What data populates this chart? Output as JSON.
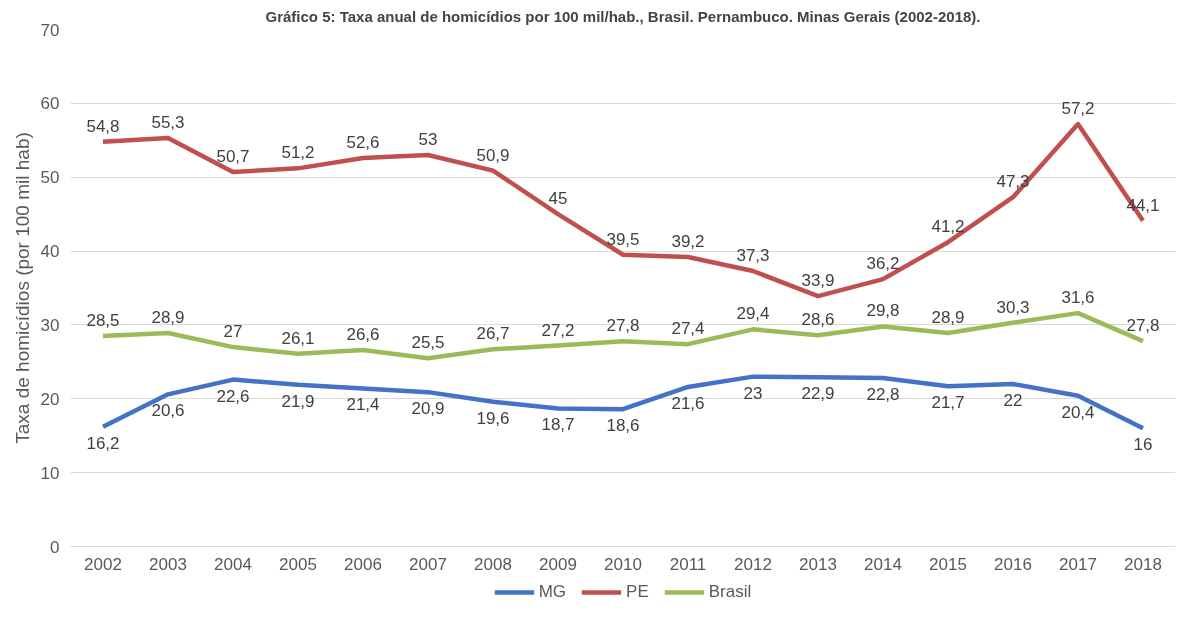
{
  "chart_data": {
    "type": "line",
    "title": "Gráfico 5: Taxa anual de homicídios por 100 mil/hab., Brasil. Pernambuco. Minas Gerais (2002-2018).",
    "ylabel": "Taxa de homicídios (por 100 mil hab)",
    "categories": [
      "2002",
      "2003",
      "2004",
      "2005",
      "2006",
      "2007",
      "2008",
      "2009",
      "2010",
      "2011",
      "2012",
      "2013",
      "2014",
      "2015",
      "2016",
      "2017",
      "2018"
    ],
    "series": [
      {
        "name": "MG",
        "color": "#4472c4",
        "values": [
          16.2,
          20.6,
          22.6,
          21.9,
          21.4,
          20.9,
          19.6,
          18.7,
          18.6,
          21.6,
          23,
          22.9,
          22.8,
          21.7,
          22,
          20.4,
          16
        ],
        "value_labels": [
          "16,2",
          "20,6",
          "22,6",
          "21,9",
          "21,4",
          "20,9",
          "19,6",
          "18,7",
          "18,6",
          "21,6",
          "23",
          "22,9",
          "22,8",
          "21,7",
          "22",
          "20,4",
          "16"
        ]
      },
      {
        "name": "PE",
        "color": "#c0504d",
        "values": [
          54.8,
          55.3,
          50.7,
          51.2,
          52.6,
          53,
          50.9,
          45,
          39.5,
          39.2,
          37.3,
          33.9,
          36.2,
          41.2,
          47.3,
          57.2,
          44.1
        ],
        "value_labels": [
          "54,8",
          "55,3",
          "50,7",
          "51,2",
          "52,6",
          "53",
          "50,9",
          "45",
          "39,5",
          "39,2",
          "37,3",
          "33,9",
          "36,2",
          "41,2",
          "47,3",
          "57,2",
          "44,1"
        ]
      },
      {
        "name": "Brasil",
        "color": "#9bbb59",
        "values": [
          28.5,
          28.9,
          27,
          26.1,
          26.6,
          25.5,
          26.7,
          27.2,
          27.8,
          27.4,
          29.4,
          28.6,
          29.8,
          28.9,
          30.3,
          31.6,
          27.8
        ],
        "value_labels": [
          "28,5",
          "28,9",
          "27",
          "26,1",
          "26,6",
          "25,5",
          "26,7",
          "27,2",
          "27,8",
          "27,4",
          "29,4",
          "28,6",
          "29,8",
          "28,9",
          "30,3",
          "31,6",
          "27,8"
        ]
      }
    ],
    "ylim": [
      0,
      70
    ],
    "yticks": [
      0,
      10,
      20,
      30,
      40,
      50,
      60,
      70
    ],
    "grid": "y",
    "legend": "bottom",
    "line_style": "solid",
    "marker": "none"
  }
}
